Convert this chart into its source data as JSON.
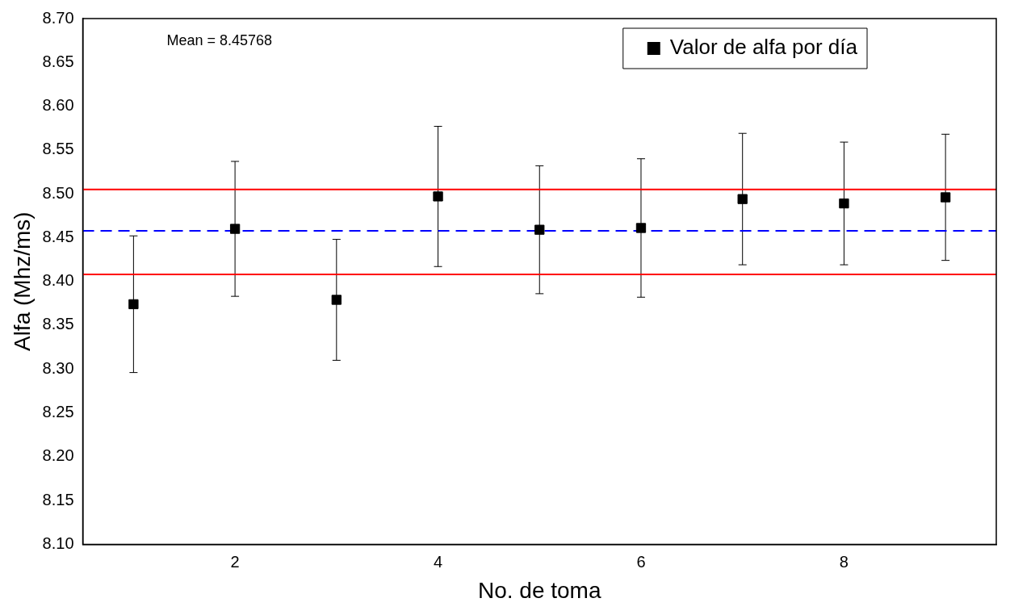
{
  "chart_data": {
    "type": "scatter",
    "xlabel": "No. de toma",
    "ylabel": "Alfa (Mhz/ms)",
    "x": [
      1,
      2,
      3,
      4,
      5,
      6,
      7,
      8,
      9
    ],
    "series": [
      {
        "name": "Valor de alfa por día",
        "color": "#000000",
        "values": [
          8.374,
          8.46,
          8.379,
          8.497,
          8.459,
          8.461,
          8.494,
          8.489,
          8.496
        ],
        "errors": [
          0.078,
          0.077,
          0.069,
          0.08,
          0.073,
          0.079,
          0.075,
          0.07,
          0.072
        ]
      }
    ],
    "marker": "square",
    "xlim": [
      0.5,
      9.5
    ],
    "xticks": [
      2,
      4,
      6,
      8
    ],
    "ylim": [
      8.1,
      8.7
    ],
    "yticks": [
      {
        "value": 8.1,
        "label": "8.10"
      },
      {
        "value": 8.15,
        "label": "8.15"
      },
      {
        "value": 8.2,
        "label": "8.20"
      },
      {
        "value": 8.25,
        "label": "8.25"
      },
      {
        "value": 8.3,
        "label": "8.30"
      },
      {
        "value": 8.35,
        "label": "8.35"
      },
      {
        "value": 8.4,
        "label": "8.40"
      },
      {
        "value": 8.45,
        "label": "8.45"
      },
      {
        "value": 8.5,
        "label": "8.50"
      },
      {
        "value": 8.55,
        "label": "8.55"
      },
      {
        "value": 8.6,
        "label": "8.60"
      },
      {
        "value": 8.65,
        "label": "8.65"
      },
      {
        "value": 8.7,
        "label": "8.70"
      }
    ],
    "ref_lines": [
      {
        "axis": "y",
        "value": 8.45768,
        "color": "#0000ff",
        "line_style": "dashed"
      },
      {
        "axis": "y",
        "value": 8.505,
        "color": "#ff0000",
        "line_style": "solid"
      },
      {
        "axis": "y",
        "value": 8.408,
        "color": "#ff0000",
        "line_style": "solid"
      }
    ],
    "annotations": [
      "Mean = 8.45768"
    ],
    "legend": "top right",
    "grid": false
  }
}
